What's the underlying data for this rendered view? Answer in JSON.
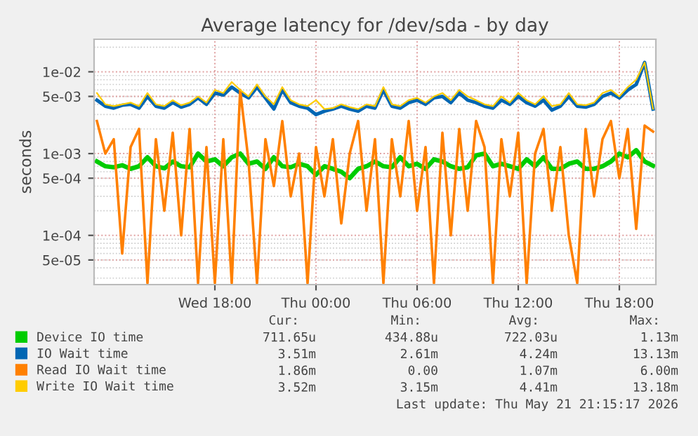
{
  "chart_data": {
    "type": "line",
    "title": "Average latency for /dev/sda - by day",
    "ylabel": "seconds",
    "x": [
      "2026-05-20T11:00",
      "2026-05-20T11:30",
      "2026-05-20T12:00",
      "2026-05-20T12:30",
      "2026-05-20T13:00",
      "2026-05-20T13:30",
      "2026-05-20T14:00",
      "2026-05-20T14:30",
      "2026-05-20T15:00",
      "2026-05-20T15:30",
      "2026-05-20T16:00",
      "2026-05-20T16:30",
      "2026-05-20T17:00",
      "2026-05-20T17:30",
      "2026-05-20T18:00",
      "2026-05-20T18:30",
      "2026-05-20T19:00",
      "2026-05-20T19:30",
      "2026-05-20T20:00",
      "2026-05-20T20:30",
      "2026-05-20T21:00",
      "2026-05-20T21:30",
      "2026-05-20T22:00",
      "2026-05-20T22:30",
      "2026-05-20T23:00",
      "2026-05-20T23:30",
      "2026-05-21T00:00",
      "2026-05-21T00:30",
      "2026-05-21T01:00",
      "2026-05-21T01:30",
      "2026-05-21T02:00",
      "2026-05-21T02:30",
      "2026-05-21T03:00",
      "2026-05-21T03:30",
      "2026-05-21T04:00",
      "2026-05-21T04:30",
      "2026-05-21T05:00",
      "2026-05-21T05:30",
      "2026-05-21T06:00",
      "2026-05-21T06:30",
      "2026-05-21T07:00",
      "2026-05-21T07:30",
      "2026-05-21T08:00",
      "2026-05-21T08:30",
      "2026-05-21T09:00",
      "2026-05-21T09:30",
      "2026-05-21T10:00",
      "2026-05-21T10:30",
      "2026-05-21T11:00",
      "2026-05-21T11:30",
      "2026-05-21T12:00",
      "2026-05-21T12:30",
      "2026-05-21T13:00",
      "2026-05-21T13:30",
      "2026-05-21T14:00",
      "2026-05-21T14:30",
      "2026-05-21T15:00",
      "2026-05-21T15:30",
      "2026-05-21T16:00",
      "2026-05-21T16:30",
      "2026-05-21T17:00",
      "2026-05-21T17:30",
      "2026-05-21T18:00",
      "2026-05-21T18:30",
      "2026-05-21T19:00",
      "2026-05-21T19:30",
      "2026-05-21T20:00"
    ],
    "series": [
      {
        "name": "Device IO time",
        "color": "#00cc00",
        "values": [
          0.0008,
          0.0007,
          0.00068,
          0.00072,
          0.00065,
          0.0007,
          0.0009,
          0.0007,
          0.00066,
          0.0008,
          0.0007,
          0.00068,
          0.001,
          0.0008,
          0.00085,
          0.0007,
          0.0009,
          0.001,
          0.00075,
          0.0008,
          0.00065,
          0.0009,
          0.0007,
          0.00068,
          0.00075,
          0.0007,
          0.00055,
          0.0007,
          0.00065,
          0.0006,
          0.0005,
          0.00065,
          0.0007,
          0.0008,
          0.0007,
          0.00068,
          0.0009,
          0.0007,
          0.00075,
          0.00065,
          0.00085,
          0.0008,
          0.0007,
          0.00065,
          0.00068,
          0.00095,
          0.001,
          0.0007,
          0.00075,
          0.0007,
          0.00065,
          0.00085,
          0.0007,
          0.0009,
          0.00065,
          0.00065,
          0.00075,
          0.0008,
          0.00065,
          0.00065,
          0.0007,
          0.0008,
          0.001,
          0.0009,
          0.0011,
          0.0008,
          0.00071
        ]
      },
      {
        "name": "IO Wait time",
        "color": "#0066b3",
        "values": [
          0.0045,
          0.0038,
          0.0036,
          0.0039,
          0.004,
          0.0036,
          0.005,
          0.0038,
          0.0036,
          0.0042,
          0.0037,
          0.004,
          0.0048,
          0.004,
          0.0055,
          0.0052,
          0.0065,
          0.0055,
          0.0048,
          0.0065,
          0.0048,
          0.0035,
          0.006,
          0.0042,
          0.0038,
          0.0036,
          0.003,
          0.0033,
          0.0035,
          0.0038,
          0.0035,
          0.0033,
          0.0038,
          0.0036,
          0.006,
          0.0038,
          0.0036,
          0.0042,
          0.0045,
          0.004,
          0.0048,
          0.005,
          0.0042,
          0.0055,
          0.0045,
          0.0042,
          0.0038,
          0.0036,
          0.0045,
          0.004,
          0.005,
          0.0042,
          0.0038,
          0.0045,
          0.0034,
          0.0038,
          0.005,
          0.0038,
          0.0037,
          0.004,
          0.005,
          0.0055,
          0.0048,
          0.006,
          0.007,
          0.013,
          0.00351
        ]
      },
      {
        "name": "Read IO Wait time",
        "color": "#ff8000",
        "values": [
          0.0025,
          0.001,
          0.0015,
          6e-05,
          0.0012,
          0.002,
          2.6e-05,
          0.0015,
          0.0002,
          0.0018,
          0.0001,
          0.002,
          2.6e-05,
          0.0012,
          2.6e-05,
          0.0015,
          2.6e-05,
          0.006,
          0.0008,
          2.6e-05,
          0.0015,
          0.0004,
          0.0025,
          0.0003,
          0.001,
          2.6e-05,
          0.0012,
          0.0003,
          0.0015,
          0.00014,
          0.001,
          0.0025,
          0.0002,
          0.0015,
          2.6e-05,
          0.0015,
          0.0003,
          0.0025,
          0.0002,
          0.0012,
          2.6e-05,
          0.0018,
          0.0001,
          0.002,
          0.0002,
          0.0025,
          0.0012,
          2.6e-05,
          0.0015,
          0.0003,
          0.0018,
          2.6e-05,
          0.001,
          0.002,
          0.0002,
          0.0012,
          0.0001,
          2.6e-05,
          0.002,
          0.0003,
          0.0015,
          0.0025,
          0.0005,
          0.002,
          0.00012,
          0.0022,
          0.00186
        ]
      },
      {
        "name": "Write IO Wait time",
        "color": "#ffcc00",
        "values": [
          0.0055,
          0.004,
          0.0038,
          0.004,
          0.0042,
          0.0038,
          0.0055,
          0.004,
          0.0038,
          0.0045,
          0.0039,
          0.0042,
          0.005,
          0.0042,
          0.006,
          0.0055,
          0.0075,
          0.006,
          0.005,
          0.007,
          0.005,
          0.004,
          0.0065,
          0.0045,
          0.004,
          0.0038,
          0.0045,
          0.0035,
          0.0036,
          0.004,
          0.0037,
          0.0035,
          0.004,
          0.0038,
          0.0065,
          0.004,
          0.0038,
          0.0045,
          0.0048,
          0.0042,
          0.005,
          0.0055,
          0.0045,
          0.006,
          0.005,
          0.0045,
          0.004,
          0.0038,
          0.005,
          0.0042,
          0.0055,
          0.0045,
          0.004,
          0.005,
          0.0038,
          0.004,
          0.0055,
          0.004,
          0.0039,
          0.0042,
          0.0055,
          0.006,
          0.005,
          0.0065,
          0.008,
          0.013,
          0.00352
        ]
      }
    ],
    "log": true,
    "xlim": [
      "2026-05-20T10:50",
      "2026-05-21T20:10"
    ],
    "xticks": [
      {
        "value": "2026-05-20T18:00",
        "label": "Wed 18:00"
      },
      {
        "value": "2026-05-21T00:00",
        "label": "Thu 00:00"
      },
      {
        "value": "2026-05-21T06:00",
        "label": "Thu 06:00"
      },
      {
        "value": "2026-05-21T12:00",
        "label": "Thu 12:00"
      },
      {
        "value": "2026-05-21T18:00",
        "label": "Thu 18:00"
      }
    ],
    "ylim": [
      2.5e-05,
      0.025
    ],
    "yticks": [
      {
        "value": 5e-05,
        "label": "5e-05"
      },
      {
        "value": 0.0001,
        "label": "1e-04"
      },
      {
        "value": 0.0005,
        "label": "5e-04"
      },
      {
        "value": 0.001,
        "label": "1e-03"
      },
      {
        "value": 0.005,
        "label": "5e-03"
      },
      {
        "value": 0.01,
        "label": "1e-02"
      }
    ],
    "grid": true,
    "legend": "bottom",
    "annotations": [
      "Cur:",
      "Min:",
      "Avg:",
      "Max:",
      "711.65u",
      "434.88u",
      "722.03u",
      "1.13m",
      "3.51m",
      "2.61m",
      "4.24m",
      "13.13m",
      "1.86m",
      "0.00",
      "1.07m",
      "6.00m",
      "3.52m",
      "3.15m",
      "4.41m",
      "13.18m",
      "Last update: Thu May 21 21:15:17 2026"
    ]
  }
}
